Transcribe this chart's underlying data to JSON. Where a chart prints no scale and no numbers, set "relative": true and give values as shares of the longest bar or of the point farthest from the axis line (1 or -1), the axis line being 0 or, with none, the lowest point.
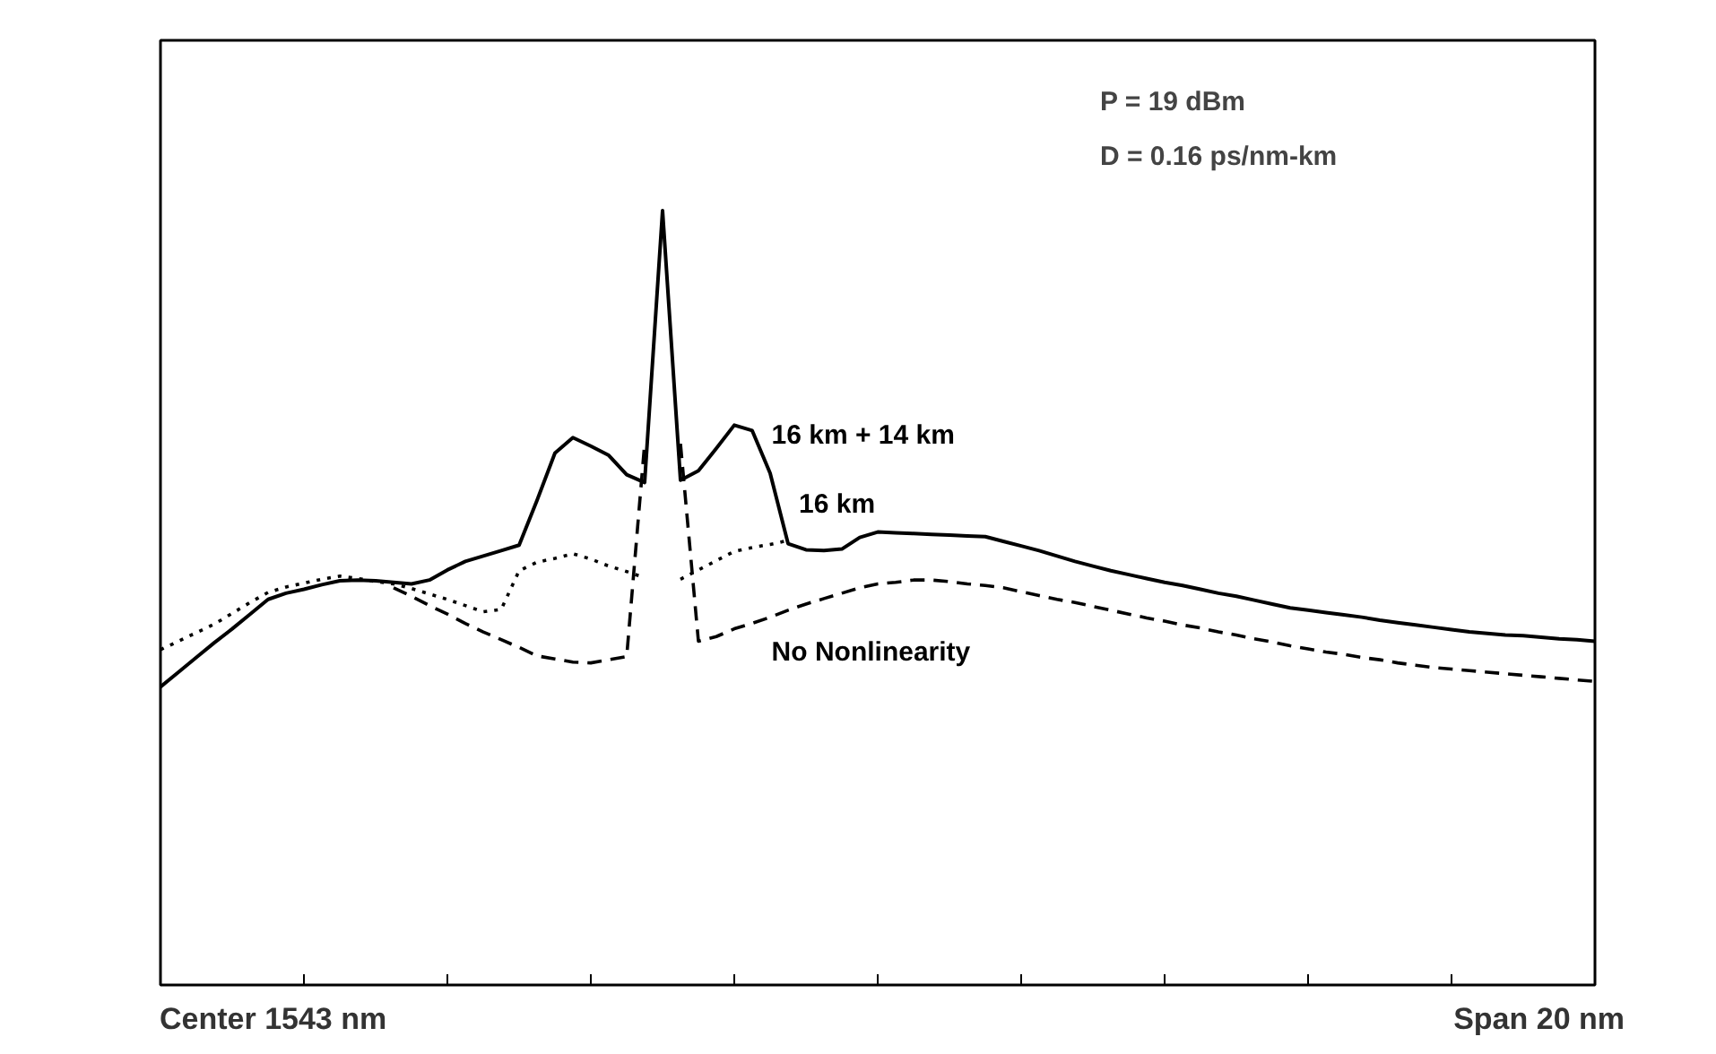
{
  "chart_data": {
    "type": "line",
    "relative": true,
    "categories": [
      null,
      null,
      null,
      null,
      null,
      null,
      null,
      null,
      null,
      null,
      null,
      null,
      null,
      null,
      null,
      null,
      null,
      null,
      null,
      null,
      null,
      null,
      null,
      null,
      null,
      null,
      null,
      null,
      null,
      null,
      null,
      null,
      null,
      null,
      null,
      null,
      null,
      null,
      null,
      null,
      null,
      null,
      null,
      null,
      null,
      null,
      null,
      null,
      null,
      null,
      null,
      null,
      null,
      null,
      null,
      null,
      null,
      null,
      null,
      null,
      null,
      null,
      null,
      null,
      null,
      null,
      null,
      null,
      null,
      null,
      null,
      null,
      null,
      null,
      null,
      null,
      null,
      null,
      null,
      null,
      null
    ],
    "grid": false,
    "marker": "none",
    "series": [
      {
        "name": "16 km + 14 km",
        "color": "#000000",
        "line_style": "solid",
        "values": [
          0.385,
          0.404,
          0.423,
          0.442,
          0.46,
          0.479,
          0.498,
          0.506,
          0.511,
          0.517,
          0.522,
          0.523,
          0.522,
          0.52,
          0.518,
          0.523,
          0.536,
          0.547,
          0.554,
          0.561,
          0.568,
          0.626,
          0.687,
          0.707,
          0.696,
          0.684,
          0.659,
          0.649,
          1.0,
          0.652,
          0.664,
          0.693,
          0.723,
          0.716,
          0.661,
          0.57,
          0.562,
          0.561,
          0.563,
          0.578,
          0.585,
          0.584,
          0.583,
          0.582,
          0.581,
          0.58,
          0.579,
          0.573,
          0.567,
          0.561,
          0.554,
          0.547,
          0.541,
          0.535,
          0.53,
          0.525,
          0.52,
          0.516,
          0.511,
          0.506,
          0.502,
          0.497,
          0.492,
          0.487,
          0.484,
          0.481,
          0.478,
          0.475,
          0.471,
          0.468,
          0.465,
          0.462,
          0.459,
          0.456,
          0.454,
          0.452,
          0.451,
          0.449,
          0.447,
          0.446,
          0.444
        ]
      },
      {
        "name": "16 km",
        "color": "#000000",
        "line_style": "dotted",
        "values": [
          0.433,
          0.444,
          0.455,
          0.466,
          0.48,
          0.494,
          0.507,
          0.514,
          0.519,
          0.524,
          0.528,
          0.525,
          0.521,
          0.518,
          0.512,
          0.505,
          0.498,
          0.49,
          0.482,
          0.485,
          0.535,
          0.546,
          0.551,
          0.557,
          0.55,
          0.541,
          0.534,
          0.526,
          null,
          0.524,
          0.536,
          0.548,
          0.56,
          0.565,
          0.569,
          0.574,
          null,
          null,
          null,
          null,
          null,
          null,
          null,
          null,
          null,
          null,
          null,
          null,
          null,
          null,
          null,
          null,
          null,
          null,
          null,
          null,
          null,
          null,
          null,
          null,
          null,
          null,
          null,
          null,
          null,
          null,
          null,
          null,
          null,
          null,
          null,
          null,
          null,
          null,
          null,
          null,
          null,
          null,
          null,
          null,
          null
        ]
      },
      {
        "name": "No Nonlinearity",
        "color": "#000000",
        "line_style": "dashed",
        "values": [
          null,
          null,
          null,
          null,
          null,
          null,
          null,
          null,
          null,
          null,
          null,
          null,
          null,
          0.513,
          0.502,
          0.49,
          0.479,
          0.467,
          0.456,
          0.446,
          0.436,
          0.425,
          0.421,
          0.417,
          0.416,
          0.42,
          0.424,
          0.699,
          null,
          0.699,
          0.444,
          0.45,
          0.46,
          0.467,
          0.475,
          0.484,
          0.492,
          0.499,
          0.506,
          0.513,
          0.518,
          0.52,
          0.523,
          0.523,
          0.521,
          0.518,
          0.516,
          0.513,
          0.508,
          0.503,
          0.498,
          0.494,
          0.489,
          0.484,
          0.479,
          0.474,
          0.47,
          0.465,
          0.461,
          0.456,
          0.452,
          0.447,
          0.443,
          0.438,
          0.434,
          0.43,
          0.427,
          0.423,
          0.42,
          0.416,
          0.413,
          0.41,
          0.408,
          0.406,
          0.404,
          0.402,
          0.4,
          0.398,
          0.396,
          0.394,
          0.392
        ]
      }
    ],
    "annotations": [
      "P = 19 dBm",
      "D = 0.16 ps/nm-km",
      "Center 1543 nm",
      "Span 20 nm"
    ]
  }
}
